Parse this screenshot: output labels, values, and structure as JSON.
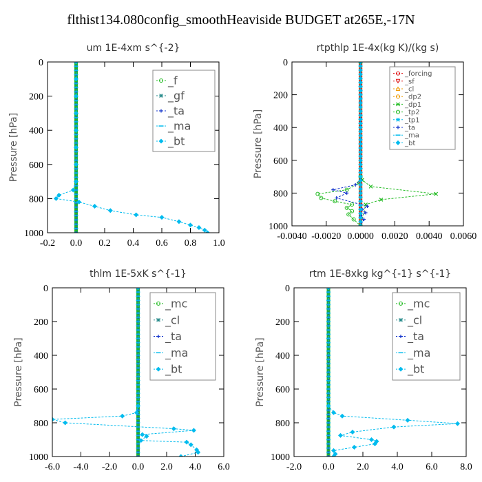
{
  "title": "flthist134.080config_smoothHeaviside  BUDGET at265E,-17N",
  "colors": {
    "green": "#22bb22",
    "red": "#dd1111",
    "blue": "#1133cc",
    "cyan": "#00bbee",
    "orange": "#ee9900",
    "teal": "#228888",
    "frame": "#000000"
  },
  "chart_data": [
    {
      "type": "line",
      "title": "um   1E-4xm s^{-2}",
      "ylabel": "Pressure [hPa]",
      "xlim": [
        -0.2,
        1.0
      ],
      "ylim": [
        0,
        1000
      ],
      "xticks": [
        "-0.2",
        "0.0",
        "0.2",
        "0.4",
        "0.6",
        "0.8",
        "1.0"
      ],
      "yticks": [
        "0",
        "200",
        "400",
        "600",
        "800",
        "1000"
      ],
      "legend_position": "top-right",
      "legend_font": 16,
      "series": [
        {
          "name": "_f",
          "color": "#22bb22",
          "marker": "circle",
          "points": [
            [
              0,
              0
            ],
            [
              0,
              1000
            ]
          ]
        },
        {
          "name": "_gf",
          "color": "#228888",
          "marker": "star",
          "points": [
            [
              0,
              0
            ],
            [
              0,
              1000
            ]
          ]
        },
        {
          "name": "_ta",
          "color": "#1133cc",
          "marker": "plus",
          "points": [
            [
              0,
              0
            ],
            [
              0,
              1000
            ]
          ]
        },
        {
          "name": "_ma",
          "color": "#00bbee",
          "marker": "dash",
          "points": [
            [
              0,
              0
            ],
            [
              0,
              1000
            ]
          ]
        },
        {
          "name": "_bt",
          "color": "#00bbee",
          "marker": "diamond",
          "points": [
            [
              0,
              0
            ],
            [
              0,
              100
            ],
            [
              0,
              200
            ],
            [
              0,
              300
            ],
            [
              0,
              400
            ],
            [
              0,
              500
            ],
            [
              0,
              600
            ],
            [
              0,
              700
            ],
            [
              -0.02,
              750
            ],
            [
              -0.12,
              780
            ],
            [
              -0.14,
              800
            ],
            [
              0.02,
              820
            ],
            [
              0.13,
              845
            ],
            [
              0.24,
              870
            ],
            [
              0.42,
              895
            ],
            [
              0.6,
              910
            ],
            [
              0.72,
              935
            ],
            [
              0.8,
              955
            ],
            [
              0.86,
              970
            ],
            [
              0.9,
              985
            ],
            [
              0.92,
              1000
            ]
          ]
        }
      ]
    },
    {
      "type": "line",
      "title": "rtpthlp   1E-4x(kg K)/(kg s)",
      "ylabel": "Pressure [hPa]",
      "xlim": [
        -0.004,
        0.006
      ],
      "ylim": [
        0,
        1000
      ],
      "xticks": [
        "-0.0040",
        "-0.0020",
        "0.0000",
        "0.0020",
        "0.0040",
        "0.0060"
      ],
      "yticks": [
        "0",
        "200",
        "400",
        "600",
        "800",
        "1000"
      ],
      "legend_position": "top-right",
      "legend_font": 10,
      "series": [
        {
          "name": "_forcing",
          "color": "#dd1111",
          "marker": "circle",
          "points": [
            [
              0,
              0
            ],
            [
              0,
              1000
            ]
          ]
        },
        {
          "name": "_sf",
          "color": "#dd1111",
          "marker": "triangle-down",
          "points": [
            [
              0,
              0
            ],
            [
              0,
              1000
            ]
          ]
        },
        {
          "name": "_cl",
          "color": "#ee9900",
          "marker": "triangle",
          "points": [
            [
              0,
              0
            ],
            [
              0,
              1000
            ]
          ]
        },
        {
          "name": "_dp2",
          "color": "#ee9900",
          "marker": "circle",
          "points": [
            [
              0,
              0
            ],
            [
              0,
              1000
            ]
          ]
        },
        {
          "name": "_dp1",
          "color": "#22bb22",
          "marker": "x",
          "points": [
            [
              0,
              0
            ],
            [
              0,
              700
            ],
            [
              0.0001,
              720
            ],
            [
              0.0006,
              760
            ],
            [
              0.0044,
              805
            ],
            [
              0.0012,
              840
            ],
            [
              0.0003,
              870
            ],
            [
              0,
              1000
            ]
          ]
        },
        {
          "name": "_tp2",
          "color": "#22bb22",
          "marker": "circle",
          "points": [
            [
              0,
              0
            ],
            [
              0,
              700
            ],
            [
              -0.0001,
              740
            ],
            [
              -0.0008,
              780
            ],
            [
              -0.0025,
              805
            ],
            [
              -0.0023,
              830
            ],
            [
              -0.0015,
              850
            ],
            [
              -0.0005,
              870
            ],
            [
              -0.0008,
              890
            ],
            [
              -0.0005,
              910
            ],
            [
              -0.0007,
              930
            ],
            [
              -0.0004,
              960
            ],
            [
              0,
              1000
            ]
          ]
        },
        {
          "name": "_tp1",
          "color": "#00bbee",
          "marker": "star",
          "points": [
            [
              0,
              0
            ],
            [
              0,
              1000
            ]
          ]
        },
        {
          "name": "_ta",
          "color": "#1133cc",
          "marker": "plus",
          "points": [
            [
              0,
              0
            ],
            [
              0,
              720
            ],
            [
              -0.0003,
              750
            ],
            [
              -0.0016,
              780
            ],
            [
              -0.0008,
              800
            ],
            [
              -0.0014,
              830
            ],
            [
              0.0004,
              880
            ],
            [
              0.0001,
              900
            ],
            [
              0.0003,
              920
            ],
            [
              0,
              940
            ],
            [
              0.0002,
              960
            ],
            [
              0,
              1000
            ]
          ]
        },
        {
          "name": "_ma",
          "color": "#00bbee",
          "marker": "dash",
          "points": [
            [
              0,
              0
            ],
            [
              0,
              1000
            ]
          ]
        },
        {
          "name": "_bt",
          "color": "#00bbee",
          "marker": "diamond",
          "points": [
            [
              0,
              0
            ],
            [
              0,
              1000
            ]
          ]
        }
      ]
    },
    {
      "type": "line",
      "title": "thlm   1E-5xK s^{-1}",
      "ylabel": "Pressure [hPa]",
      "xlim": [
        -6.0,
        6.0
      ],
      "ylim": [
        0,
        1000
      ],
      "xticks": [
        "-6.0",
        "-4.0",
        "-2.0",
        "0.0",
        "2.0",
        "4.0",
        "6.0"
      ],
      "yticks": [
        "0",
        "200",
        "400",
        "600",
        "800",
        "1000"
      ],
      "legend_position": "top-right",
      "legend_font": 16,
      "series": [
        {
          "name": "_mc",
          "color": "#22bb22",
          "marker": "circle",
          "points": [
            [
              0,
              0
            ],
            [
              0,
              1000
            ]
          ]
        },
        {
          "name": "_cl",
          "color": "#228888",
          "marker": "star",
          "points": [
            [
              0,
              0
            ],
            [
              0,
              1000
            ]
          ]
        },
        {
          "name": "_ta",
          "color": "#1133cc",
          "marker": "plus",
          "points": [
            [
              0,
              0
            ],
            [
              0,
              1000
            ]
          ]
        },
        {
          "name": "_ma",
          "color": "#00bbee",
          "marker": "dash",
          "points": [
            [
              0,
              0
            ],
            [
              0,
              1000
            ]
          ]
        },
        {
          "name": "_bt",
          "color": "#00bbee",
          "marker": "diamond",
          "points": [
            [
              0,
              0
            ],
            [
              0,
              700
            ],
            [
              -0.1,
              740
            ],
            [
              -1.1,
              760
            ],
            [
              -6.0,
              780
            ],
            [
              -5.1,
              800
            ],
            [
              2.5,
              835
            ],
            [
              3.9,
              845
            ],
            [
              0.3,
              870
            ],
            [
              0.6,
              880
            ],
            [
              0.2,
              905
            ],
            [
              3.4,
              915
            ],
            [
              3.7,
              930
            ],
            [
              4.1,
              960
            ],
            [
              4.2,
              975
            ],
            [
              3.0,
              1000
            ]
          ]
        }
      ]
    },
    {
      "type": "line",
      "title": "rtm   1E-8xkg kg^{-1} s^{-1}",
      "ylabel": "Pressure [hPa]",
      "xlim": [
        -2.0,
        8.0
      ],
      "ylim": [
        0,
        1000
      ],
      "xticks": [
        "-2.0",
        "0.0",
        "2.0",
        "4.0",
        "6.0",
        "8.0"
      ],
      "yticks": [
        "0",
        "200",
        "400",
        "600",
        "800",
        "1000"
      ],
      "legend_position": "top-right",
      "legend_font": 16,
      "series": [
        {
          "name": "_mc",
          "color": "#22bb22",
          "marker": "circle",
          "points": [
            [
              0,
              0
            ],
            [
              0,
              1000
            ]
          ]
        },
        {
          "name": "_cl",
          "color": "#228888",
          "marker": "star",
          "points": [
            [
              0,
              0
            ],
            [
              0,
              1000
            ]
          ]
        },
        {
          "name": "_ta",
          "color": "#1133cc",
          "marker": "plus",
          "points": [
            [
              0,
              0
            ],
            [
              0,
              1000
            ]
          ]
        },
        {
          "name": "_ma",
          "color": "#00bbee",
          "marker": "dash",
          "points": [
            [
              0,
              0
            ],
            [
              0,
              1000
            ]
          ]
        },
        {
          "name": "_bt",
          "color": "#00bbee",
          "marker": "diamond",
          "points": [
            [
              0,
              0
            ],
            [
              0,
              700
            ],
            [
              0.3,
              740
            ],
            [
              0.8,
              760
            ],
            [
              4.6,
              785
            ],
            [
              7.5,
              805
            ],
            [
              3.8,
              825
            ],
            [
              1.4,
              855
            ],
            [
              0.7,
              875
            ],
            [
              2.5,
              900
            ],
            [
              2.8,
              910
            ],
            [
              2.7,
              925
            ],
            [
              1.5,
              945
            ],
            [
              0.3,
              965
            ],
            [
              0.4,
              985
            ],
            [
              0.3,
              1000
            ]
          ]
        }
      ]
    }
  ]
}
